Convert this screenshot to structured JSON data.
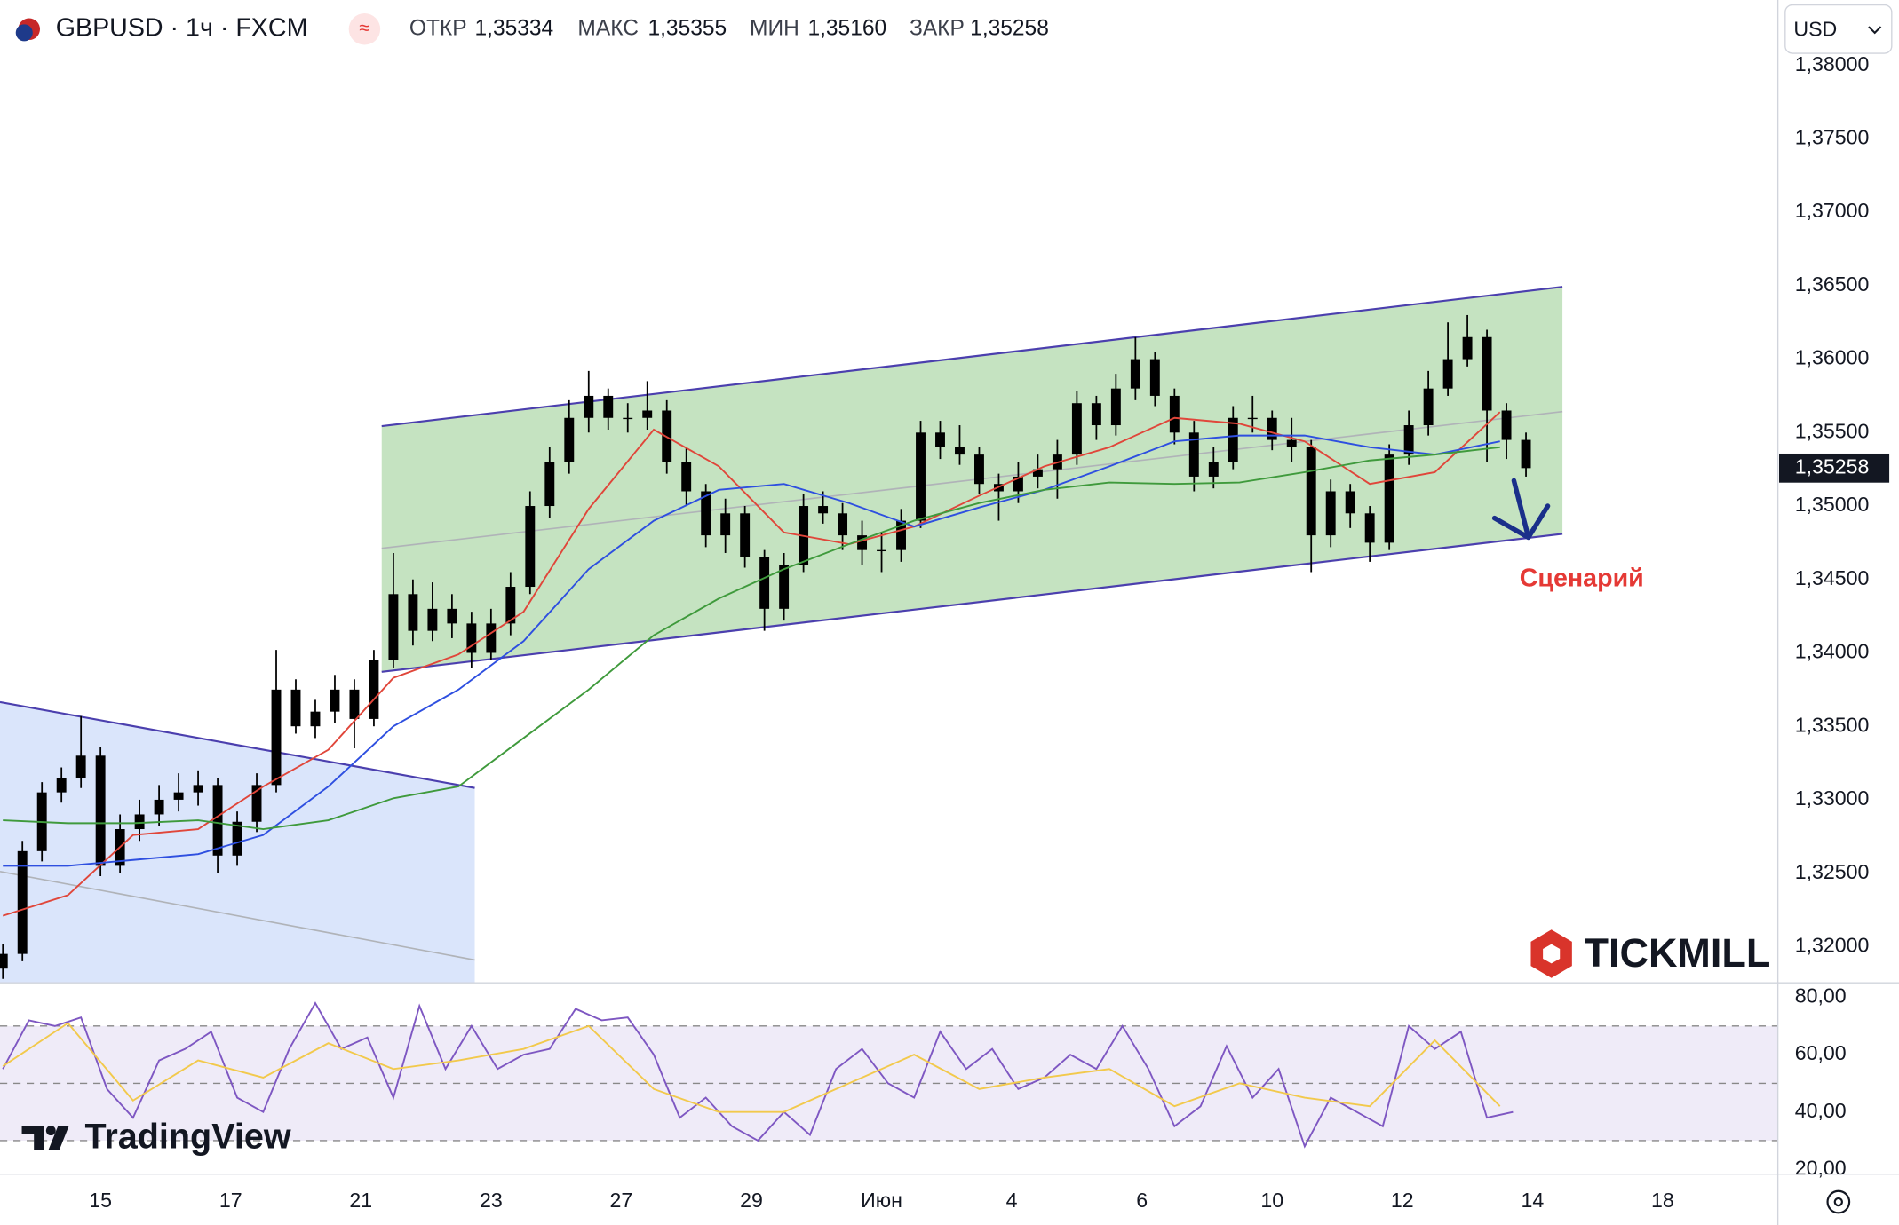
{
  "header": {
    "symbol": "GBPUSD · 1ч · FXCM",
    "ohlc": [
      {
        "label": "ОТКР",
        "value": "1,35334"
      },
      {
        "label": "МАКС",
        "value": "1,35355"
      },
      {
        "label": "МИН",
        "value": "1,35160"
      },
      {
        "label": "ЗАКР",
        "value": "1,35258"
      }
    ],
    "currency": "USD"
  },
  "branding": {
    "tradingview": "TradingView",
    "tickmill": "TICKMILL"
  },
  "chart_data": [
    {
      "type": "candlestick",
      "color": "#000000",
      "xlim": [
        -1.544,
        25.77
      ],
      "ylim": [
        1.31753,
        1.38445
      ],
      "xticks": [
        {
          "value": 0,
          "label": "15"
        },
        {
          "value": 2,
          "label": "17"
        },
        {
          "value": 4,
          "label": "21"
        },
        {
          "value": 6,
          "label": "23"
        },
        {
          "value": 8,
          "label": "27"
        },
        {
          "value": 10,
          "label": "29"
        },
        {
          "value": 12,
          "label": "Июн"
        },
        {
          "value": 14,
          "label": "4"
        },
        {
          "value": 16,
          "label": "6"
        },
        {
          "value": 18,
          "label": "10"
        },
        {
          "value": 20,
          "label": "12"
        },
        {
          "value": 22,
          "label": "14"
        },
        {
          "value": 24,
          "label": "18"
        }
      ],
      "yticks": [
        {
          "value": 1.32,
          "label": "1,32000"
        },
        {
          "value": 1.325,
          "label": "1,32500"
        },
        {
          "value": 1.33,
          "label": "1,33000"
        },
        {
          "value": 1.335,
          "label": "1,33500"
        },
        {
          "value": 1.34,
          "label": "1,34000"
        },
        {
          "value": 1.345,
          "label": "1,34500"
        },
        {
          "value": 1.35,
          "label": "1,35000"
        },
        {
          "value": 1.355,
          "label": "1,35500"
        },
        {
          "value": 1.36,
          "label": "1,36000"
        },
        {
          "value": 1.365,
          "label": "1,36500"
        },
        {
          "value": 1.37,
          "label": "1,37000"
        },
        {
          "value": 1.375,
          "label": "1,37500"
        },
        {
          "value": 1.38,
          "label": "1,38000"
        }
      ],
      "x": [
        -1.5,
        -1.2,
        -0.9,
        -0.6,
        -0.3,
        0,
        0.3,
        0.6,
        0.9,
        1.2,
        1.5,
        1.8,
        2.1,
        2.4,
        2.7,
        3,
        3.3,
        3.6,
        3.9,
        4.2,
        4.5,
        4.8,
        5.1,
        5.4,
        5.7,
        6,
        6.3,
        6.6,
        6.9,
        7.2,
        7.5,
        7.8,
        8.1,
        8.4,
        8.7,
        9,
        9.3,
        9.6,
        9.9,
        10.2,
        10.5,
        10.8,
        11.1,
        11.4,
        11.7,
        12,
        12.3,
        12.6,
        12.9,
        13.2,
        13.5,
        13.8,
        14.1,
        14.4,
        14.7,
        15,
        15.3,
        15.6,
        15.9,
        16.2,
        16.5,
        16.8,
        17.1,
        17.4,
        17.7,
        18,
        18.3,
        18.6,
        18.9,
        19.2,
        19.5,
        19.8,
        20.1,
        20.4,
        20.7,
        21,
        21.3,
        21.6,
        21.9
      ],
      "open": [
        1.3185,
        1.3195,
        1.3265,
        1.3305,
        1.3315,
        1.333,
        1.3255,
        1.328,
        1.329,
        1.33,
        1.3305,
        1.331,
        1.3262,
        1.3285,
        1.331,
        1.3375,
        1.335,
        1.336,
        1.3375,
        1.3355,
        1.3395,
        1.344,
        1.3415,
        1.343,
        1.342,
        1.34,
        1.342,
        1.3445,
        1.35,
        1.353,
        1.356,
        1.3575,
        1.356,
        1.356,
        1.3565,
        1.353,
        1.351,
        1.348,
        1.3495,
        1.3465,
        1.343,
        1.346,
        1.35,
        1.3495,
        1.348,
        1.347,
        1.347,
        1.349,
        1.355,
        1.354,
        1.3535,
        1.3515,
        1.351,
        1.352,
        1.3525,
        1.3535,
        1.357,
        1.3555,
        1.358,
        1.36,
        1.3575,
        1.355,
        1.352,
        1.353,
        1.356,
        1.356,
        1.3545,
        1.354,
        1.348,
        1.351,
        1.3495,
        1.3475,
        1.3535,
        1.3555,
        1.358,
        1.36,
        1.3615,
        1.3565,
        1.3545
      ],
      "high": [
        1.3202,
        1.3272,
        1.3312,
        1.3322,
        1.3357,
        1.3336,
        1.329,
        1.33,
        1.331,
        1.3318,
        1.332,
        1.3315,
        1.3292,
        1.3318,
        1.3402,
        1.3382,
        1.3368,
        1.3385,
        1.3382,
        1.3402,
        1.3468,
        1.345,
        1.3448,
        1.344,
        1.3428,
        1.343,
        1.3455,
        1.351,
        1.354,
        1.3572,
        1.3592,
        1.358,
        1.357,
        1.3585,
        1.3572,
        1.354,
        1.3515,
        1.3505,
        1.35,
        1.347,
        1.3468,
        1.3508,
        1.351,
        1.3502,
        1.349,
        1.3482,
        1.3498,
        1.3558,
        1.3558,
        1.3555,
        1.354,
        1.3522,
        1.353,
        1.3535,
        1.3545,
        1.3578,
        1.3575,
        1.359,
        1.3615,
        1.3605,
        1.358,
        1.3558,
        1.354,
        1.3568,
        1.3575,
        1.3565,
        1.356,
        1.3545,
        1.3518,
        1.3515,
        1.35,
        1.3542,
        1.3565,
        1.3592,
        1.3625,
        1.363,
        1.362,
        1.357,
        1.355
      ],
      "low": [
        1.3178,
        1.319,
        1.3258,
        1.3298,
        1.3308,
        1.3248,
        1.325,
        1.3272,
        1.3282,
        1.3292,
        1.3296,
        1.325,
        1.3255,
        1.3278,
        1.3305,
        1.3345,
        1.3342,
        1.3352,
        1.3335,
        1.335,
        1.339,
        1.3405,
        1.3408,
        1.341,
        1.339,
        1.3395,
        1.3412,
        1.344,
        1.3492,
        1.3522,
        1.355,
        1.3552,
        1.355,
        1.3552,
        1.3522,
        1.35,
        1.3472,
        1.3468,
        1.3458,
        1.3415,
        1.3422,
        1.3455,
        1.3488,
        1.347,
        1.346,
        1.3455,
        1.3462,
        1.3485,
        1.3532,
        1.3528,
        1.3508,
        1.349,
        1.3502,
        1.3512,
        1.3505,
        1.3528,
        1.3545,
        1.3548,
        1.3572,
        1.3568,
        1.3542,
        1.351,
        1.3512,
        1.3525,
        1.355,
        1.3538,
        1.353,
        1.3455,
        1.3472,
        1.3485,
        1.3462,
        1.347,
        1.3528,
        1.3548,
        1.3575,
        1.3595,
        1.353,
        1.3532,
        1.352
      ],
      "close": [
        1.3195,
        1.3265,
        1.3305,
        1.3315,
        1.333,
        1.3255,
        1.328,
        1.329,
        1.33,
        1.3305,
        1.331,
        1.3262,
        1.3285,
        1.331,
        1.3375,
        1.335,
        1.336,
        1.3375,
        1.3355,
        1.3395,
        1.344,
        1.3415,
        1.343,
        1.342,
        1.34,
        1.342,
        1.3445,
        1.35,
        1.353,
        1.356,
        1.3575,
        1.356,
        1.356,
        1.3565,
        1.353,
        1.351,
        1.348,
        1.3495,
        1.3465,
        1.343,
        1.346,
        1.35,
        1.3495,
        1.348,
        1.347,
        1.347,
        1.349,
        1.355,
        1.354,
        1.3535,
        1.3515,
        1.351,
        1.352,
        1.3525,
        1.3535,
        1.357,
        1.3555,
        1.358,
        1.36,
        1.3575,
        1.355,
        1.352,
        1.353,
        1.356,
        1.356,
        1.3545,
        1.354,
        1.348,
        1.351,
        1.3495,
        1.3475,
        1.3535,
        1.3555,
        1.358,
        1.36,
        1.3615,
        1.3565,
        1.3545,
        1.35258
      ],
      "lines": [
        {
          "color": "#e0463a",
          "x": [
            -1.5,
            -0.5,
            0.5,
            1.5,
            2.5,
            3.5,
            4.5,
            5.5,
            6.5,
            7.5,
            8.5,
            9.5,
            10.5,
            11.5,
            12.5,
            13.5,
            14.5,
            15.5,
            16.5,
            17.5,
            18.5,
            19.5,
            20.5,
            21.5
          ],
          "values": [
            1.3221,
            1.3235,
            1.3276,
            1.328,
            1.3309,
            1.3334,
            1.3383,
            1.3399,
            1.3428,
            1.3498,
            1.3552,
            1.3527,
            1.3482,
            1.3474,
            1.3486,
            1.3507,
            1.3527,
            1.354,
            1.356,
            1.3556,
            1.3544,
            1.3515,
            1.3523,
            1.3564
          ]
        },
        {
          "color": "#2e4fe0",
          "x": [
            -1.5,
            -0.5,
            0.5,
            1.5,
            2.5,
            3.5,
            4.5,
            5.5,
            6.5,
            7.5,
            8.5,
            9.5,
            10.5,
            11.5,
            12.5,
            13.5,
            14.5,
            15.5,
            16.5,
            17.5,
            18.5,
            19.5,
            20.5,
            21.5
          ],
          "values": [
            1.3255,
            1.3255,
            1.3259,
            1.3263,
            1.3276,
            1.3309,
            1.335,
            1.3375,
            1.3408,
            1.3457,
            1.349,
            1.3511,
            1.3515,
            1.3502,
            1.3486,
            1.3499,
            1.3511,
            1.3527,
            1.3544,
            1.3548,
            1.3548,
            1.354,
            1.3535,
            1.3544
          ]
        },
        {
          "color": "#3f9a3c",
          "x": [
            -1.5,
            -0.5,
            0.5,
            1.5,
            2.5,
            3.5,
            4.5,
            5.5,
            6.5,
            7.5,
            8.5,
            9.5,
            10.5,
            11.5,
            12.5,
            13.5,
            14.5,
            15.5,
            16.5,
            17.5,
            18.5,
            19.5,
            20.5,
            21.5
          ],
          "values": [
            1.3286,
            1.3284,
            1.3284,
            1.3286,
            1.328,
            1.3286,
            1.3301,
            1.3309,
            1.3342,
            1.3375,
            1.3412,
            1.3437,
            1.3457,
            1.3474,
            1.349,
            1.3502,
            1.3511,
            1.3516,
            1.3515,
            1.3516,
            1.3523,
            1.3531,
            1.3535,
            1.354
          ]
        }
      ],
      "channels": [
        {
          "fill": "#dae5fb",
          "stroke": "#4b3fae",
          "x": [
            -1.544,
            5.75
          ],
          "upper": [
            1.33665,
            1.3308
          ],
          "mid": [
            1.32511,
            1.31909
          ]
        },
        {
          "fill": "#c5e3c1",
          "stroke": "#4b3fae",
          "x": [
            4.32,
            22.46
          ],
          "upper": [
            1.35544,
            1.36492
          ],
          "mid": [
            1.34712,
            1.35643
          ],
          "lower": [
            1.33871,
            1.3481
          ]
        }
      ],
      "last_price": {
        "value": 1.35258,
        "label": "1,35258"
      },
      "annotation": {
        "text": "Сценарий",
        "color": "#e53935"
      }
    },
    {
      "type": "line",
      "xlim": [
        -1.544,
        25.77
      ],
      "ylim": [
        18.3,
        85.07
      ],
      "yticks": [
        {
          "value": 80,
          "label": "80,00"
        },
        {
          "value": 60,
          "label": "60,00"
        },
        {
          "value": 40,
          "label": "40,00"
        },
        {
          "value": 20,
          "label": "20,00"
        }
      ],
      "band": [
        30,
        70
      ],
      "midline": 50,
      "series": [
        {
          "color": "#7e57c2",
          "x": [
            -1.5,
            -1.1,
            -0.7,
            -0.3,
            0.1,
            0.5,
            0.9,
            1.3,
            1.7,
            2.1,
            2.5,
            2.9,
            3.3,
            3.7,
            4.1,
            4.5,
            4.9,
            5.3,
            5.7,
            6.1,
            6.5,
            6.9,
            7.3,
            7.7,
            8.1,
            8.5,
            8.9,
            9.3,
            9.7,
            10.1,
            10.5,
            10.9,
            11.3,
            11.7,
            12.1,
            12.5,
            12.9,
            13.3,
            13.7,
            14.1,
            14.5,
            14.9,
            15.3,
            15.7,
            16.1,
            16.5,
            16.9,
            17.3,
            17.7,
            18.1,
            18.5,
            18.9,
            19.3,
            19.7,
            20.1,
            20.5,
            20.9,
            21.3,
            21.7
          ],
          "values": [
            55,
            72,
            70,
            73,
            48,
            38,
            58,
            62,
            68,
            45,
            40,
            62,
            78,
            62,
            66,
            45,
            77,
            55,
            70,
            55,
            60,
            62,
            76,
            72,
            73,
            60,
            38,
            45,
            35,
            30,
            40,
            32,
            55,
            62,
            50,
            45,
            68,
            55,
            62,
            48,
            52,
            60,
            55,
            70,
            55,
            35,
            42,
            63,
            45,
            55,
            28,
            45,
            40,
            35,
            70,
            62,
            68,
            38,
            40
          ]
        },
        {
          "color": "#f2c94c",
          "x": [
            -1.5,
            -0.5,
            0.5,
            1.5,
            2.5,
            3.5,
            4.5,
            5.5,
            6.5,
            7.5,
            8.5,
            9.5,
            10.5,
            11.5,
            12.5,
            13.5,
            14.5,
            15.5,
            16.5,
            17.5,
            18.5,
            19.5,
            20.5,
            21.5
          ],
          "values": [
            56,
            71,
            44,
            58,
            52,
            64,
            55,
            58,
            62,
            70,
            48,
            40,
            40,
            50,
            60,
            48,
            52,
            55,
            42,
            50,
            45,
            42,
            65,
            42
          ]
        }
      ]
    }
  ]
}
